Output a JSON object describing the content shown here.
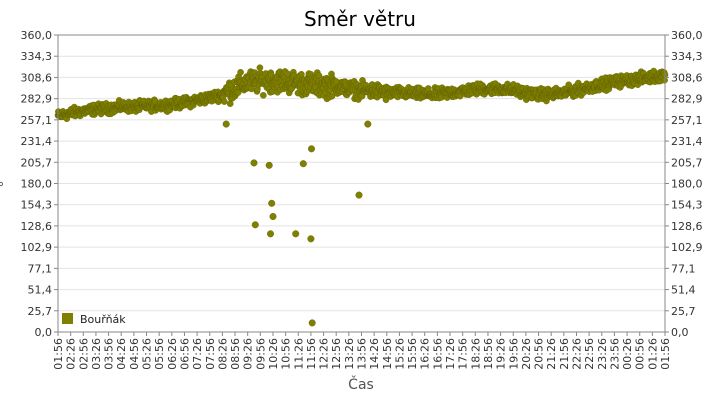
{
  "chart_data": {
    "type": "scatter",
    "title": "Směr větru",
    "xlabel": "Čas",
    "ylabel": "°",
    "ylim": [
      0,
      360
    ],
    "yticks": [
      "0,0",
      "25,7",
      "51,4",
      "77,1",
      "102,9",
      "128,6",
      "154,3",
      "180,0",
      "205,7",
      "231,4",
      "257,1",
      "282,9",
      "308,6",
      "334,3",
      "360,0"
    ],
    "xticks": [
      "01:56",
      "02:26",
      "02:56",
      "03:26",
      "03:56",
      "04:26",
      "04:56",
      "05:26",
      "05:56",
      "06:26",
      "06:56",
      "07:26",
      "07:56",
      "08:26",
      "08:56",
      "09:26",
      "09:56",
      "10:26",
      "10:56",
      "11:26",
      "11:56",
      "12:26",
      "12:56",
      "13:26",
      "13:56",
      "14:26",
      "14:56",
      "15:26",
      "15:56",
      "16:26",
      "16:56",
      "17:26",
      "17:56",
      "18:26",
      "18:56",
      "19:26",
      "19:56",
      "20:26",
      "20:56",
      "21:26",
      "21:56",
      "22:26",
      "22:56",
      "23:26",
      "23:56",
      "00:26",
      "00:56",
      "01:26",
      "01:56"
    ],
    "grid": true,
    "legend_position": "bottom-left",
    "series": [
      {
        "name": "Bouřňák",
        "color": "#808000",
        "trend": [
          [
            0,
            262
          ],
          [
            1,
            265
          ],
          [
            2,
            268
          ],
          [
            3,
            270
          ],
          [
            4,
            271
          ],
          [
            5,
            273
          ],
          [
            6,
            273
          ],
          [
            7,
            274
          ],
          [
            8,
            275
          ],
          [
            9,
            276
          ],
          [
            10,
            278
          ],
          [
            11,
            281
          ],
          [
            12,
            284
          ],
          [
            13,
            288
          ],
          [
            14,
            296
          ],
          [
            15,
            303
          ],
          [
            16,
            304
          ],
          [
            17,
            305
          ],
          [
            18,
            304
          ],
          [
            19,
            302
          ],
          [
            20,
            300
          ],
          [
            21,
            299
          ],
          [
            22,
            298
          ],
          [
            23,
            295
          ],
          [
            24,
            293
          ],
          [
            25,
            292
          ],
          [
            26,
            290
          ],
          [
            27,
            290
          ],
          [
            28,
            289
          ],
          [
            29,
            288
          ],
          [
            30,
            288
          ],
          [
            31,
            290
          ],
          [
            32,
            292
          ],
          [
            33,
            294
          ],
          [
            34,
            295
          ],
          [
            35,
            295
          ],
          [
            36,
            293
          ],
          [
            37,
            290
          ],
          [
            38,
            288
          ],
          [
            39,
            288
          ],
          [
            40,
            290
          ],
          [
            41,
            293
          ],
          [
            42,
            297
          ],
          [
            43,
            300
          ],
          [
            44,
            303
          ],
          [
            45,
            305
          ],
          [
            46,
            307
          ],
          [
            47,
            309
          ],
          [
            48,
            312
          ]
        ],
        "outliers": [
          [
            13.3,
            252
          ],
          [
            15.5,
            205
          ],
          [
            15.6,
            130
          ],
          [
            16.7,
            202
          ],
          [
            16.8,
            119
          ],
          [
            16.9,
            156
          ],
          [
            17.0,
            140
          ],
          [
            18.8,
            119
          ],
          [
            19.4,
            204
          ],
          [
            20.0,
            113
          ],
          [
            20.05,
            222
          ],
          [
            20.1,
            11
          ],
          [
            23.8,
            166
          ],
          [
            24.5,
            252
          ]
        ]
      }
    ]
  }
}
